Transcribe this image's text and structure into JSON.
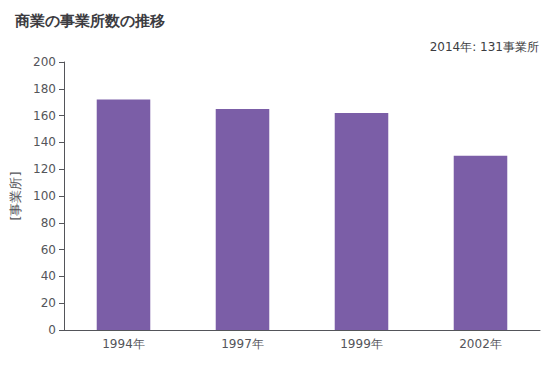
{
  "chart_data": {
    "type": "bar",
    "title": "商業の事業所数の推移",
    "ylabel": "[事業所]",
    "annotation": "2014年: 131事業所",
    "categories": [
      "1994年",
      "1997年",
      "1999年",
      "2002年"
    ],
    "values": [
      172,
      165,
      162,
      130
    ],
    "color": "#7B5EA7",
    "ylim": [
      0,
      200
    ],
    "yticks": [
      0,
      20,
      40,
      60,
      80,
      100,
      120,
      140,
      160,
      180,
      200
    ],
    "grid": false
  }
}
